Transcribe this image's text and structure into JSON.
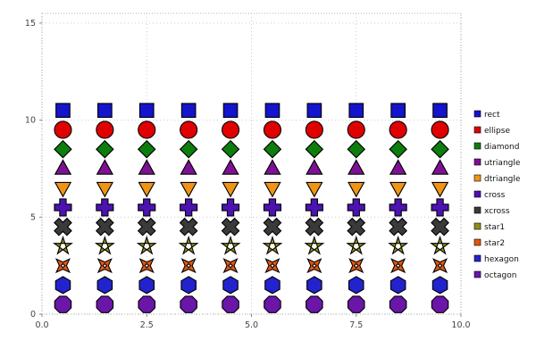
{
  "chart_data": {
    "type": "scatter",
    "title": "",
    "xlabel": "",
    "ylabel": "",
    "xlim": [
      0,
      10
    ],
    "ylim": [
      0,
      15.5
    ],
    "xticks": {
      "values": [
        0,
        2.5,
        5,
        7.5,
        10
      ],
      "labels": [
        "0.0",
        "2.5",
        "5.0",
        "7.5",
        "10.0"
      ]
    },
    "yticks": {
      "values": [
        0,
        5,
        10,
        15
      ],
      "labels": [
        "0",
        "5",
        "10",
        "15"
      ]
    },
    "grid": true,
    "legend_position": "right",
    "background": "#ffffff",
    "grid_color": "#cccccc",
    "frame_color": "#b3b3b3",
    "tick_label_color": "#444444",
    "marker_stroke": "#000000",
    "x": [
      0.5,
      1.5,
      2.5,
      3.5,
      4.5,
      5.5,
      6.5,
      7.5,
      8.5,
      9.5
    ],
    "series": [
      {
        "name": "rect",
        "marker": "rect",
        "color": "#1414cc",
        "y": 10.5
      },
      {
        "name": "ellipse",
        "marker": "ellipse",
        "color": "#e00000",
        "y": 9.5
      },
      {
        "name": "diamond",
        "marker": "diamond",
        "color": "#0d7d0d",
        "y": 8.5
      },
      {
        "name": "utriangle",
        "marker": "utriangle",
        "color": "#7d1194",
        "y": 7.5
      },
      {
        "name": "dtriangle",
        "marker": "dtriangle",
        "color": "#f09414",
        "y": 6.5
      },
      {
        "name": "cross",
        "marker": "cross",
        "color": "#4c12b2",
        "y": 5.5
      },
      {
        "name": "xcross",
        "marker": "xcross",
        "color": "#3a3a3a",
        "y": 4.5
      },
      {
        "name": "star1",
        "marker": "star1",
        "color": "#8f8f14",
        "y": 3.5
      },
      {
        "name": "star2",
        "marker": "star2",
        "color": "#e2560f",
        "y": 2.5
      },
      {
        "name": "hexagon",
        "marker": "hexagon",
        "color": "#2323cd",
        "y": 1.5
      },
      {
        "name": "octagon",
        "marker": "octagon",
        "color": "#6a16a8",
        "y": 0.5
      }
    ]
  }
}
